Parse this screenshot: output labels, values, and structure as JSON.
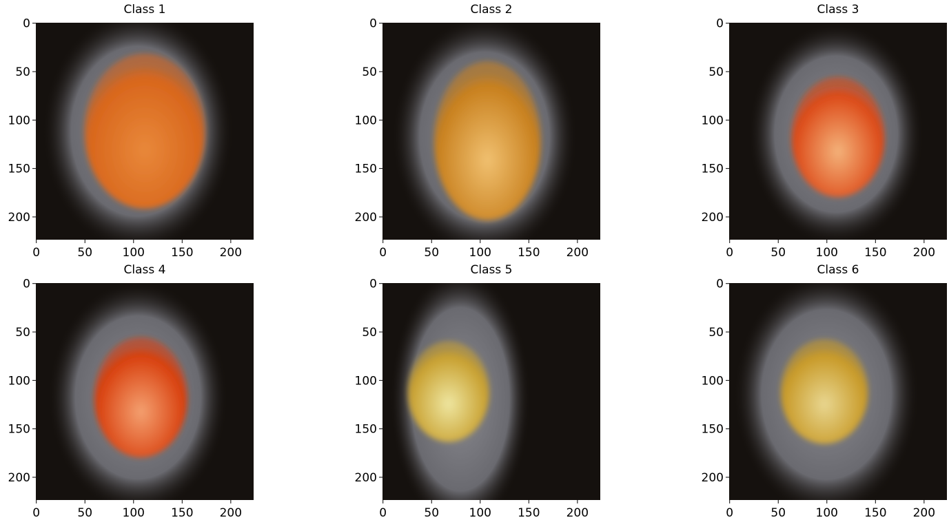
{
  "chart_data": [
    {
      "type": "image",
      "title": "Class 1",
      "xlim": [
        -0.5,
        223.5
      ],
      "ylim": [
        223.5,
        -0.5
      ],
      "xticks": [
        0,
        50,
        100,
        150,
        200
      ],
      "yticks": [
        0,
        50,
        100,
        150,
        200
      ]
    },
    {
      "type": "image",
      "title": "Class 2",
      "xlim": [
        -0.5,
        223.5
      ],
      "ylim": [
        223.5,
        -0.5
      ],
      "xticks": [
        0,
        50,
        100,
        150,
        200
      ],
      "yticks": [
        0,
        50,
        100,
        150,
        200
      ]
    },
    {
      "type": "image",
      "title": "Class 3",
      "xlim": [
        -0.5,
        223.5
      ],
      "ylim": [
        223.5,
        -0.5
      ],
      "xticks": [
        0,
        50,
        100,
        150,
        200
      ],
      "yticks": [
        0,
        50,
        100,
        150,
        200
      ]
    },
    {
      "type": "image",
      "title": "Class 4",
      "xlim": [
        -0.5,
        223.5
      ],
      "ylim": [
        223.5,
        -0.5
      ],
      "xticks": [
        0,
        50,
        100,
        150,
        200
      ],
      "yticks": [
        0,
        50,
        100,
        150,
        200
      ]
    },
    {
      "type": "image",
      "title": "Class 5",
      "xlim": [
        -0.5,
        223.5
      ],
      "ylim": [
        223.5,
        -0.5
      ],
      "xticks": [
        0,
        50,
        100,
        150,
        200
      ],
      "yticks": [
        0,
        50,
        100,
        150,
        200
      ]
    },
    {
      "type": "image",
      "title": "Class 6",
      "xlim": [
        -0.5,
        223.5
      ],
      "ylim": [
        223.5,
        -0.5
      ],
      "xticks": [
        0,
        50,
        100,
        150,
        200
      ],
      "yticks": [
        0,
        50,
        100,
        150,
        200
      ]
    }
  ]
}
